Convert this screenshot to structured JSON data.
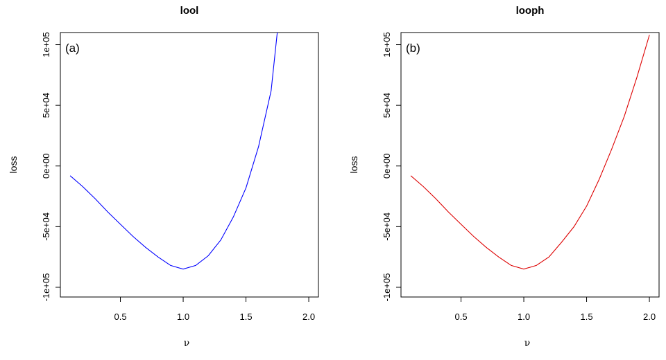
{
  "chart_data": [
    {
      "type": "line",
      "title": "lool",
      "panel_label": "(a)",
      "xlabel": "ν",
      "ylabel": "loss",
      "xlim": [
        0.022,
        2.077
      ],
      "ylim": [
        -108000,
        110000
      ],
      "xticks": [
        0.5,
        1.0,
        1.5,
        2.0
      ],
      "xtick_labels": [
        "0.5",
        "1.0",
        "1.5",
        "2.0"
      ],
      "yticks": [
        -100000,
        -50000,
        0,
        50000,
        100000
      ],
      "ytick_labels": [
        "-1e+05",
        "-5e+04",
        "0e+00",
        "5e+04",
        "1e+05"
      ],
      "color": "#0000ff",
      "x": [
        0.1,
        0.2,
        0.3,
        0.4,
        0.5,
        0.6,
        0.7,
        0.8,
        0.9,
        1.0,
        1.1,
        1.2,
        1.3,
        1.4,
        1.5,
        1.6,
        1.7,
        1.8
      ],
      "y": [
        -8000,
        -17000,
        -27000,
        -38000,
        -48000,
        -58000,
        -67000,
        -75000,
        -82000,
        -85000,
        -82000,
        -74000,
        -61000,
        -42000,
        -18000,
        16000,
        62000,
        160000
      ]
    },
    {
      "type": "line",
      "title": "looph",
      "panel_label": "(b)",
      "xlabel": "ν",
      "ylabel": "loss",
      "xlim": [
        0.022,
        2.077
      ],
      "ylim": [
        -108000,
        110000
      ],
      "xticks": [
        0.5,
        1.0,
        1.5,
        2.0
      ],
      "xtick_labels": [
        "0.5",
        "1.0",
        "1.5",
        "2.0"
      ],
      "yticks": [
        -100000,
        -50000,
        0,
        50000,
        100000
      ],
      "ytick_labels": [
        "-1e+05",
        "-5e+04",
        "0e+00",
        "5e+04",
        "1e+05"
      ],
      "color": "#dd0000",
      "x": [
        0.1,
        0.2,
        0.3,
        0.4,
        0.5,
        0.6,
        0.7,
        0.8,
        0.9,
        1.0,
        1.1,
        1.2,
        1.3,
        1.4,
        1.5,
        1.6,
        1.7,
        1.8,
        1.9,
        2.0
      ],
      "y": [
        -8000,
        -17000,
        -27000,
        -38000,
        -48000,
        -58000,
        -67000,
        -75000,
        -82000,
        -85000,
        -82000,
        -75000,
        -63000,
        -50000,
        -33000,
        -11000,
        14000,
        41000,
        73000,
        108000
      ]
    }
  ]
}
